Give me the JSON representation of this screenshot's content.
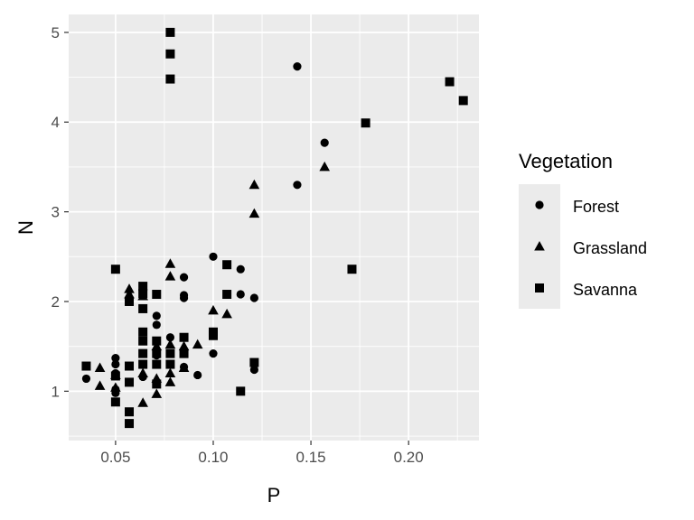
{
  "chart_data": {
    "type": "scatter",
    "title": "",
    "xlabel": "P",
    "ylabel": "N",
    "xlim": [
      0.026,
      0.236
    ],
    "ylim": [
      0.45,
      5.2
    ],
    "x_ticks": [
      0.05,
      0.1,
      0.15,
      0.2
    ],
    "x_tick_labels": [
      "0.05",
      "0.10",
      "0.15",
      "0.20"
    ],
    "y_ticks": [
      1,
      2,
      3,
      4,
      5
    ],
    "y_tick_labels": [
      "1",
      "2",
      "3",
      "4",
      "5"
    ],
    "grid": true,
    "panel_background": "#ebebeb",
    "grid_color": "#ffffff",
    "point_color": "#000000",
    "legend": {
      "title": "Vegetation",
      "placement": "right",
      "entries": [
        {
          "label": "Forest",
          "shape": "circle"
        },
        {
          "label": "Grassland",
          "shape": "triangle"
        },
        {
          "label": "Savanna",
          "shape": "square"
        }
      ]
    },
    "series": [
      {
        "name": "Forest",
        "shape": "circle",
        "points": [
          [
            0.143,
            4.62
          ],
          [
            0.157,
            3.77
          ],
          [
            0.143,
            3.3
          ],
          [
            0.1,
            2.5
          ],
          [
            0.085,
            2.27
          ],
          [
            0.114,
            2.36
          ],
          [
            0.071,
            1.84
          ],
          [
            0.085,
            2.07
          ],
          [
            0.085,
            2.04
          ],
          [
            0.114,
            2.08
          ],
          [
            0.121,
            2.04
          ],
          [
            0.071,
            1.74
          ],
          [
            0.078,
            1.6
          ],
          [
            0.071,
            1.4
          ],
          [
            0.078,
            1.3
          ],
          [
            0.085,
            1.27
          ],
          [
            0.092,
            1.18
          ],
          [
            0.1,
            1.42
          ],
          [
            0.121,
            1.24
          ],
          [
            0.05,
            1.37
          ],
          [
            0.05,
            1.3
          ],
          [
            0.05,
            1.2
          ],
          [
            0.035,
            1.14
          ],
          [
            0.05,
            1.02
          ],
          [
            0.05,
            0.98
          ],
          [
            0.064,
            1.16
          ]
        ]
      },
      {
        "name": "Grassland",
        "shape": "triangle",
        "points": [
          [
            0.157,
            3.5
          ],
          [
            0.121,
            3.3
          ],
          [
            0.121,
            2.98
          ],
          [
            0.078,
            2.42
          ],
          [
            0.078,
            2.28
          ],
          [
            0.057,
            2.14
          ],
          [
            0.057,
            2.08
          ],
          [
            0.064,
            2.06
          ],
          [
            0.1,
            1.9
          ],
          [
            0.107,
            1.86
          ],
          [
            0.071,
            1.5
          ],
          [
            0.078,
            1.52
          ],
          [
            0.085,
            1.5
          ],
          [
            0.092,
            1.52
          ],
          [
            0.078,
            1.2
          ],
          [
            0.085,
            1.26
          ],
          [
            0.064,
            1.2
          ],
          [
            0.071,
            1.14
          ],
          [
            0.078,
            1.1
          ],
          [
            0.042,
            1.26
          ],
          [
            0.05,
            1.18
          ],
          [
            0.042,
            1.06
          ],
          [
            0.05,
            1.04
          ],
          [
            0.064,
            0.87
          ],
          [
            0.071,
            0.97
          ]
        ]
      },
      {
        "name": "Savanna",
        "shape": "square",
        "points": [
          [
            0.078,
            5.0
          ],
          [
            0.078,
            4.76
          ],
          [
            0.078,
            4.48
          ],
          [
            0.221,
            4.45
          ],
          [
            0.228,
            4.24
          ],
          [
            0.178,
            3.99
          ],
          [
            0.171,
            2.36
          ],
          [
            0.05,
            2.36
          ],
          [
            0.107,
            2.41
          ],
          [
            0.064,
            2.17
          ],
          [
            0.064,
            2.09
          ],
          [
            0.071,
            2.08
          ],
          [
            0.107,
            2.08
          ],
          [
            0.057,
            2.0
          ],
          [
            0.064,
            1.92
          ],
          [
            0.064,
            1.66
          ],
          [
            0.1,
            1.66
          ],
          [
            0.064,
            1.56
          ],
          [
            0.071,
            1.56
          ],
          [
            0.085,
            1.6
          ],
          [
            0.1,
            1.62
          ],
          [
            0.064,
            1.42
          ],
          [
            0.071,
            1.42
          ],
          [
            0.078,
            1.42
          ],
          [
            0.085,
            1.42
          ],
          [
            0.064,
            1.3
          ],
          [
            0.071,
            1.3
          ],
          [
            0.078,
            1.3
          ],
          [
            0.035,
            1.28
          ],
          [
            0.057,
            1.28
          ],
          [
            0.121,
            1.32
          ],
          [
            0.05,
            1.17
          ],
          [
            0.071,
            1.08
          ],
          [
            0.114,
            1.0
          ],
          [
            0.057,
            1.1
          ],
          [
            0.05,
            0.88
          ],
          [
            0.057,
            0.77
          ],
          [
            0.057,
            0.64
          ]
        ]
      }
    ]
  }
}
